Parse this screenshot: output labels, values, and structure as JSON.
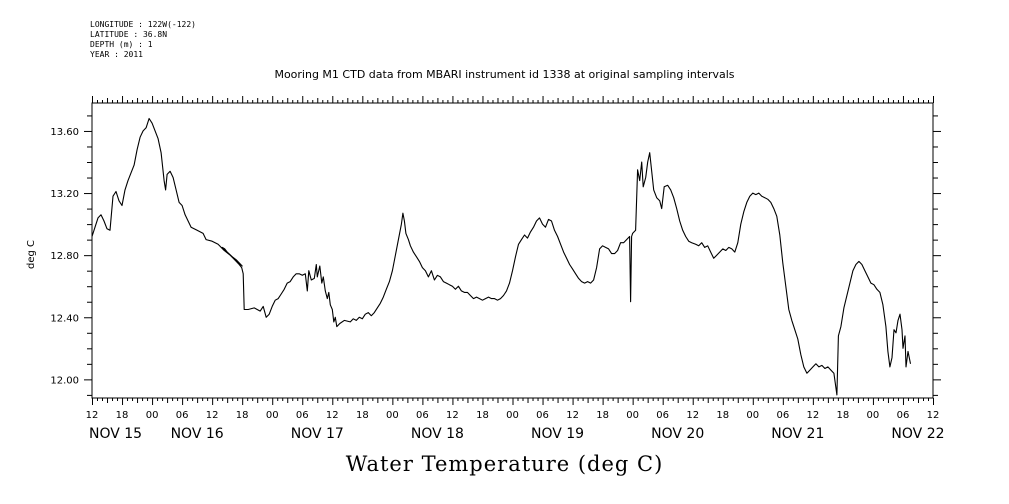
{
  "meta": {
    "longitude": "LONGITUDE : 122W(-122)",
    "latitude": "LATITUDE : 36.8N",
    "depth": "DEPTH (m) : 1",
    "year": "YEAR : 2011"
  },
  "chart_data": {
    "type": "line",
    "title": "Mooring M1 CTD data from MBARI instrument id 1338 at original sampling intervals",
    "xlabel": "Water Temperature (deg C)",
    "ylabel": "deg C",
    "ylim": [
      11.88,
      13.78
    ],
    "xlim_hours": [
      0,
      168
    ],
    "y_ticks": [
      12.0,
      12.4,
      12.8,
      13.2,
      13.6
    ],
    "y_tick_labels": [
      "12.00",
      "12.40",
      "12.80",
      "13.20",
      "13.60"
    ],
    "x_hour_labels": [
      "12",
      "18",
      "00",
      "06",
      "12",
      "18",
      "00",
      "06",
      "12",
      "18",
      "00",
      "06",
      "12",
      "18",
      "00",
      "06",
      "12",
      "18",
      "00",
      "06",
      "12",
      "18",
      "00",
      "06",
      "12",
      "18",
      "00",
      "06",
      "12"
    ],
    "x_date_labels": [
      "NOV 15",
      "NOV 16",
      "NOV 17",
      "NOV 18",
      "NOV 19",
      "NOV 20",
      "NOV 21",
      "NOV 22"
    ],
    "grid": false,
    "series": [
      {
        "values": [
          [
            0.0,
            12.92
          ],
          [
            0.6,
            12.98
          ],
          [
            1.2,
            13.04
          ],
          [
            1.8,
            13.06
          ],
          [
            2.4,
            13.02
          ],
          [
            3.0,
            12.97
          ],
          [
            3.6,
            12.96
          ],
          [
            4.2,
            13.18
          ],
          [
            4.8,
            13.21
          ],
          [
            5.4,
            13.15
          ],
          [
            6.0,
            13.12
          ],
          [
            6.6,
            13.22
          ],
          [
            7.2,
            13.28
          ],
          [
            7.8,
            13.33
          ],
          [
            8.4,
            13.38
          ],
          [
            9.0,
            13.48
          ],
          [
            9.6,
            13.56
          ],
          [
            10.2,
            13.6
          ],
          [
            10.8,
            13.62
          ],
          [
            11.4,
            13.68
          ],
          [
            12.0,
            13.65
          ],
          [
            12.6,
            13.6
          ],
          [
            13.2,
            13.55
          ],
          [
            13.8,
            13.46
          ],
          [
            14.4,
            13.28
          ],
          [
            14.7,
            13.22
          ],
          [
            15.0,
            13.32
          ],
          [
            15.6,
            13.34
          ],
          [
            16.2,
            13.3
          ],
          [
            16.8,
            13.22
          ],
          [
            17.4,
            13.14
          ],
          [
            18.0,
            13.12
          ],
          [
            18.6,
            13.06
          ],
          [
            19.2,
            13.02
          ],
          [
            19.8,
            12.98
          ],
          [
            21.0,
            12.96
          ],
          [
            22.2,
            12.94
          ],
          [
            22.8,
            12.9
          ],
          [
            24.0,
            12.89
          ],
          [
            25.2,
            12.87
          ],
          [
            26.4,
            12.83
          ],
          [
            27.6,
            12.8
          ],
          [
            28.8,
            12.77
          ],
          [
            30.0,
            12.73
          ],
          [
            26.0,
            12.85
          ],
          [
            26.5,
            12.84
          ],
          [
            27.0,
            12.82
          ],
          [
            27.6,
            12.8
          ],
          [
            28.2,
            12.78
          ],
          [
            28.8,
            12.76
          ],
          [
            29.4,
            12.74
          ],
          [
            29.9,
            12.72
          ],
          [
            30.2,
            12.68
          ],
          [
            30.4,
            12.45
          ],
          [
            31.2,
            12.45
          ],
          [
            32.4,
            12.46
          ],
          [
            33.0,
            12.45
          ],
          [
            33.6,
            12.44
          ],
          [
            34.2,
            12.47
          ],
          [
            34.8,
            12.4
          ],
          [
            35.4,
            12.42
          ],
          [
            36.0,
            12.47
          ],
          [
            36.6,
            12.51
          ],
          [
            37.2,
            12.52
          ],
          [
            37.8,
            12.55
          ],
          [
            38.4,
            12.58
          ],
          [
            39.0,
            12.62
          ],
          [
            39.6,
            12.63
          ],
          [
            40.2,
            12.66
          ],
          [
            40.8,
            12.68
          ],
          [
            41.4,
            12.68
          ],
          [
            42.0,
            12.67
          ],
          [
            42.6,
            12.68
          ],
          [
            43.0,
            12.57
          ],
          [
            43.3,
            12.7
          ],
          [
            43.8,
            12.64
          ],
          [
            44.4,
            12.65
          ],
          [
            44.8,
            12.74
          ],
          [
            45.0,
            12.66
          ],
          [
            45.5,
            12.73
          ],
          [
            45.9,
            12.62
          ],
          [
            46.2,
            12.66
          ],
          [
            46.6,
            12.57
          ],
          [
            47.0,
            12.52
          ],
          [
            47.3,
            12.56
          ],
          [
            47.6,
            12.48
          ],
          [
            48.0,
            12.45
          ],
          [
            48.3,
            12.37
          ],
          [
            48.6,
            12.4
          ],
          [
            48.9,
            12.34
          ],
          [
            49.5,
            12.36
          ],
          [
            50.4,
            12.38
          ],
          [
            51.6,
            12.37
          ],
          [
            52.2,
            12.39
          ],
          [
            52.8,
            12.38
          ],
          [
            53.4,
            12.4
          ],
          [
            54.0,
            12.39
          ],
          [
            54.6,
            12.42
          ],
          [
            55.2,
            12.43
          ],
          [
            55.8,
            12.41
          ],
          [
            56.4,
            12.43
          ],
          [
            57.0,
            12.46
          ],
          [
            57.6,
            12.49
          ],
          [
            58.2,
            12.53
          ],
          [
            58.8,
            12.58
          ],
          [
            59.4,
            12.63
          ],
          [
            60.0,
            12.7
          ],
          [
            60.6,
            12.8
          ],
          [
            61.2,
            12.9
          ],
          [
            61.8,
            13.0
          ],
          [
            62.1,
            13.07
          ],
          [
            62.4,
            13.02
          ],
          [
            62.7,
            12.94
          ],
          [
            63.2,
            12.9
          ],
          [
            63.6,
            12.86
          ],
          [
            64.2,
            12.82
          ],
          [
            64.8,
            12.79
          ],
          [
            65.4,
            12.76
          ],
          [
            66.0,
            12.72
          ],
          [
            66.6,
            12.7
          ],
          [
            67.2,
            12.66
          ],
          [
            67.8,
            12.7
          ],
          [
            68.4,
            12.64
          ],
          [
            69.0,
            12.67
          ],
          [
            69.6,
            12.66
          ],
          [
            70.2,
            12.63
          ],
          [
            70.8,
            12.62
          ],
          [
            71.4,
            12.61
          ],
          [
            72.0,
            12.6
          ],
          [
            72.6,
            12.58
          ],
          [
            73.2,
            12.6
          ],
          [
            73.8,
            12.57
          ],
          [
            74.4,
            12.56
          ],
          [
            75.0,
            12.56
          ],
          [
            75.6,
            12.54
          ],
          [
            76.2,
            12.52
          ],
          [
            76.8,
            12.53
          ],
          [
            77.4,
            12.52
          ],
          [
            78.0,
            12.51
          ],
          [
            78.6,
            12.52
          ],
          [
            79.2,
            12.53
          ],
          [
            79.8,
            12.52
          ],
          [
            80.4,
            12.52
          ],
          [
            81.0,
            12.51
          ],
          [
            81.6,
            12.52
          ],
          [
            82.2,
            12.54
          ],
          [
            82.8,
            12.57
          ],
          [
            83.4,
            12.62
          ],
          [
            84.0,
            12.7
          ],
          [
            84.6,
            12.79
          ],
          [
            85.2,
            12.87
          ],
          [
            85.8,
            12.9
          ],
          [
            86.4,
            12.93
          ],
          [
            87.0,
            12.91
          ],
          [
            87.6,
            12.95
          ],
          [
            88.2,
            12.98
          ],
          [
            88.8,
            13.02
          ],
          [
            89.4,
            13.04
          ],
          [
            90.0,
            13.0
          ],
          [
            90.6,
            12.98
          ],
          [
            91.2,
            13.03
          ],
          [
            91.8,
            13.02
          ],
          [
            92.4,
            12.96
          ],
          [
            93.0,
            12.92
          ],
          [
            93.6,
            12.87
          ],
          [
            94.2,
            12.82
          ],
          [
            94.8,
            12.78
          ],
          [
            95.4,
            12.74
          ],
          [
            96.0,
            12.71
          ],
          [
            96.6,
            12.68
          ],
          [
            97.2,
            12.65
          ],
          [
            97.8,
            12.63
          ],
          [
            98.4,
            12.62
          ],
          [
            99.0,
            12.63
          ],
          [
            99.6,
            12.62
          ],
          [
            100.2,
            12.64
          ],
          [
            100.8,
            12.72
          ],
          [
            101.4,
            12.84
          ],
          [
            102.0,
            12.86
          ],
          [
            102.6,
            12.85
          ],
          [
            103.2,
            12.84
          ],
          [
            103.8,
            12.81
          ],
          [
            104.4,
            12.81
          ],
          [
            105.0,
            12.83
          ],
          [
            105.6,
            12.88
          ],
          [
            106.2,
            12.88
          ],
          [
            106.8,
            12.9
          ],
          [
            107.4,
            12.92
          ],
          [
            107.6,
            12.5
          ],
          [
            107.8,
            12.92
          ],
          [
            108.0,
            12.94
          ],
          [
            108.6,
            12.96
          ],
          [
            109.0,
            13.35
          ],
          [
            109.4,
            13.28
          ],
          [
            109.8,
            13.4
          ],
          [
            110.1,
            13.24
          ],
          [
            110.6,
            13.3
          ],
          [
            111.0,
            13.4
          ],
          [
            111.4,
            13.46
          ],
          [
            111.8,
            13.34
          ],
          [
            112.2,
            13.22
          ],
          [
            112.8,
            13.17
          ],
          [
            113.4,
            13.15
          ],
          [
            113.8,
            13.1
          ],
          [
            114.3,
            13.24
          ],
          [
            115.0,
            13.25
          ],
          [
            115.6,
            13.22
          ],
          [
            116.2,
            13.17
          ],
          [
            116.8,
            13.1
          ],
          [
            117.4,
            13.02
          ],
          [
            118.0,
            12.96
          ],
          [
            118.6,
            12.92
          ],
          [
            119.2,
            12.89
          ],
          [
            119.8,
            12.88
          ],
          [
            120.6,
            12.87
          ],
          [
            121.2,
            12.86
          ],
          [
            121.8,
            12.88
          ],
          [
            122.4,
            12.85
          ],
          [
            123.0,
            12.86
          ],
          [
            123.6,
            12.82
          ],
          [
            124.2,
            12.78
          ],
          [
            124.8,
            12.8
          ],
          [
            125.4,
            12.82
          ],
          [
            126.0,
            12.84
          ],
          [
            126.6,
            12.83
          ],
          [
            127.2,
            12.85
          ],
          [
            127.8,
            12.84
          ],
          [
            128.4,
            12.82
          ],
          [
            129.0,
            12.88
          ],
          [
            129.6,
            13.0
          ],
          [
            130.2,
            13.08
          ],
          [
            130.8,
            13.14
          ],
          [
            131.4,
            13.18
          ],
          [
            132.0,
            13.2
          ],
          [
            132.6,
            13.19
          ],
          [
            133.2,
            13.2
          ],
          [
            133.8,
            13.18
          ],
          [
            134.4,
            13.17
          ],
          [
            135.0,
            13.16
          ],
          [
            135.6,
            13.14
          ],
          [
            136.2,
            13.1
          ],
          [
            136.8,
            13.05
          ],
          [
            137.4,
            12.93
          ],
          [
            138.0,
            12.75
          ],
          [
            138.6,
            12.6
          ],
          [
            139.2,
            12.45
          ],
          [
            139.8,
            12.38
          ],
          [
            140.4,
            12.32
          ],
          [
            141.0,
            12.26
          ],
          [
            141.6,
            12.16
          ],
          [
            142.2,
            12.08
          ],
          [
            142.8,
            12.04
          ],
          [
            143.4,
            12.06
          ],
          [
            144.0,
            12.08
          ],
          [
            144.6,
            12.1
          ],
          [
            145.2,
            12.08
          ],
          [
            145.8,
            12.09
          ],
          [
            146.4,
            12.07
          ],
          [
            147.0,
            12.08
          ],
          [
            147.6,
            12.06
          ],
          [
            148.2,
            12.04
          ],
          [
            148.8,
            11.9
          ],
          [
            149.1,
            12.28
          ],
          [
            149.6,
            12.34
          ],
          [
            150.2,
            12.46
          ],
          [
            150.8,
            12.54
          ],
          [
            151.4,
            12.62
          ],
          [
            152.0,
            12.7
          ],
          [
            152.6,
            12.74
          ],
          [
            153.2,
            12.76
          ],
          [
            153.8,
            12.74
          ],
          [
            154.4,
            12.7
          ],
          [
            155.0,
            12.66
          ],
          [
            155.6,
            12.62
          ],
          [
            156.2,
            12.61
          ],
          [
            156.8,
            12.58
          ],
          [
            157.4,
            12.56
          ],
          [
            158.0,
            12.48
          ],
          [
            158.6,
            12.34
          ],
          [
            159.0,
            12.18
          ],
          [
            159.4,
            12.08
          ],
          [
            159.8,
            12.14
          ],
          [
            160.2,
            12.32
          ],
          [
            160.6,
            12.3
          ],
          [
            161.0,
            12.38
          ],
          [
            161.4,
            12.42
          ],
          [
            161.8,
            12.32
          ],
          [
            162.0,
            12.2
          ],
          [
            162.4,
            12.28
          ],
          [
            162.6,
            12.08
          ],
          [
            163.0,
            12.18
          ],
          [
            163.5,
            12.1
          ]
        ]
      }
    ]
  }
}
